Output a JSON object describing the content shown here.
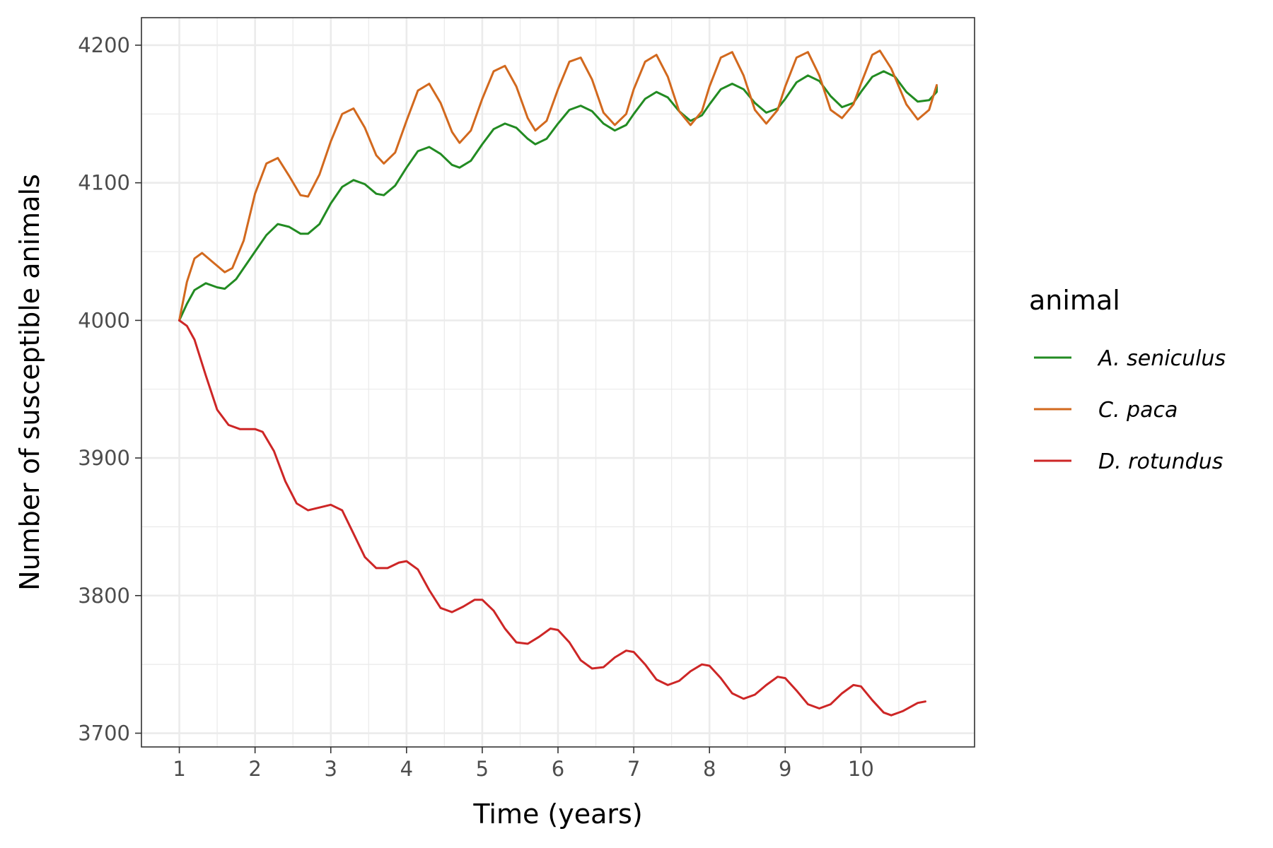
{
  "chart_data": {
    "type": "line",
    "title": "",
    "xlabel": "Time (years)",
    "ylabel": "Number of susceptible animals",
    "xlim": [
      0.5,
      11.5
    ],
    "ylim": [
      3690,
      4220
    ],
    "x_ticks": [
      1,
      2,
      3,
      4,
      5,
      6,
      7,
      8,
      9,
      10
    ],
    "x_tick_labels": [
      "1",
      "2",
      "3",
      "4",
      "5",
      "6",
      "7",
      "8",
      "9",
      "10"
    ],
    "y_ticks": [
      3700,
      3800,
      3900,
      4000,
      4100,
      4200
    ],
    "y_tick_labels": [
      "3700",
      "3800",
      "3900",
      "4000",
      "4100",
      "4200"
    ],
    "grid": true,
    "legend": {
      "title": "animal",
      "position": "right",
      "entries": [
        "A. seniculus",
        "C. paca",
        "D. rotundus"
      ]
    },
    "series": [
      {
        "name": "A. seniculus",
        "color": "#228B22",
        "points": [
          [
            1.0,
            4000
          ],
          [
            1.1,
            4012
          ],
          [
            1.2,
            4022
          ],
          [
            1.35,
            4027
          ],
          [
            1.5,
            4024
          ],
          [
            1.6,
            4023
          ],
          [
            1.75,
            4030
          ],
          [
            1.9,
            4042
          ],
          [
            2.0,
            4050
          ],
          [
            2.15,
            4062
          ],
          [
            2.3,
            4070
          ],
          [
            2.45,
            4068
          ],
          [
            2.6,
            4063
          ],
          [
            2.7,
            4063
          ],
          [
            2.85,
            4070
          ],
          [
            3.0,
            4085
          ],
          [
            3.15,
            4097
          ],
          [
            3.3,
            4102
          ],
          [
            3.45,
            4099
          ],
          [
            3.6,
            4092
          ],
          [
            3.7,
            4091
          ],
          [
            3.85,
            4098
          ],
          [
            4.0,
            4111
          ],
          [
            4.15,
            4123
          ],
          [
            4.3,
            4126
          ],
          [
            4.45,
            4121
          ],
          [
            4.6,
            4113
          ],
          [
            4.7,
            4111
          ],
          [
            4.85,
            4116
          ],
          [
            5.0,
            4128
          ],
          [
            5.15,
            4139
          ],
          [
            5.3,
            4143
          ],
          [
            5.45,
            4140
          ],
          [
            5.6,
            4132
          ],
          [
            5.7,
            4128
          ],
          [
            5.85,
            4132
          ],
          [
            6.0,
            4143
          ],
          [
            6.15,
            4153
          ],
          [
            6.3,
            4156
          ],
          [
            6.45,
            4152
          ],
          [
            6.6,
            4143
          ],
          [
            6.75,
            4138
          ],
          [
            6.9,
            4142
          ],
          [
            7.0,
            4150
          ],
          [
            7.15,
            4161
          ],
          [
            7.3,
            4166
          ],
          [
            7.45,
            4162
          ],
          [
            7.6,
            4152
          ],
          [
            7.75,
            4145
          ],
          [
            7.9,
            4149
          ],
          [
            8.0,
            4157
          ],
          [
            8.15,
            4168
          ],
          [
            8.3,
            4172
          ],
          [
            8.45,
            4168
          ],
          [
            8.6,
            4158
          ],
          [
            8.75,
            4151
          ],
          [
            8.9,
            4154
          ],
          [
            9.0,
            4161
          ],
          [
            9.15,
            4173
          ],
          [
            9.3,
            4178
          ],
          [
            9.45,
            4174
          ],
          [
            9.6,
            4163
          ],
          [
            9.75,
            4155
          ],
          [
            9.9,
            4158
          ],
          [
            10.0,
            4166
          ],
          [
            10.15,
            4177
          ],
          [
            10.3,
            4181
          ],
          [
            10.45,
            4177
          ],
          [
            10.6,
            4166
          ],
          [
            10.75,
            4159
          ],
          [
            10.9,
            4160
          ],
          [
            11.0,
            4166
          ],
          [
            11.0,
            4170
          ]
        ]
      },
      {
        "name": "C. paca",
        "color": "#D2691E",
        "points": [
          [
            1.0,
            4000
          ],
          [
            1.1,
            4028
          ],
          [
            1.2,
            4045
          ],
          [
            1.3,
            4049
          ],
          [
            1.45,
            4042
          ],
          [
            1.6,
            4035
          ],
          [
            1.7,
            4038
          ],
          [
            1.85,
            4058
          ],
          [
            2.0,
            4092
          ],
          [
            2.15,
            4114
          ],
          [
            2.3,
            4118
          ],
          [
            2.45,
            4105
          ],
          [
            2.6,
            4091
          ],
          [
            2.7,
            4090
          ],
          [
            2.85,
            4106
          ],
          [
            3.0,
            4130
          ],
          [
            3.15,
            4150
          ],
          [
            3.3,
            4154
          ],
          [
            3.45,
            4140
          ],
          [
            3.6,
            4120
          ],
          [
            3.7,
            4114
          ],
          [
            3.85,
            4122
          ],
          [
            4.0,
            4145
          ],
          [
            4.15,
            4167
          ],
          [
            4.3,
            4172
          ],
          [
            4.45,
            4158
          ],
          [
            4.6,
            4137
          ],
          [
            4.7,
            4129
          ],
          [
            4.85,
            4138
          ],
          [
            5.0,
            4161
          ],
          [
            5.15,
            4181
          ],
          [
            5.3,
            4185
          ],
          [
            5.45,
            4170
          ],
          [
            5.6,
            4147
          ],
          [
            5.7,
            4138
          ],
          [
            5.85,
            4145
          ],
          [
            6.0,
            4168
          ],
          [
            6.15,
            4188
          ],
          [
            6.3,
            4191
          ],
          [
            6.45,
            4175
          ],
          [
            6.6,
            4151
          ],
          [
            6.75,
            4142
          ],
          [
            6.9,
            4150
          ],
          [
            7.0,
            4168
          ],
          [
            7.15,
            4188
          ],
          [
            7.3,
            4193
          ],
          [
            7.45,
            4177
          ],
          [
            7.6,
            4152
          ],
          [
            7.75,
            4142
          ],
          [
            7.9,
            4152
          ],
          [
            8.0,
            4170
          ],
          [
            8.15,
            4191
          ],
          [
            8.3,
            4195
          ],
          [
            8.45,
            4178
          ],
          [
            8.6,
            4153
          ],
          [
            8.75,
            4143
          ],
          [
            8.9,
            4153
          ],
          [
            9.0,
            4170
          ],
          [
            9.15,
            4191
          ],
          [
            9.3,
            4195
          ],
          [
            9.45,
            4178
          ],
          [
            9.6,
            4153
          ],
          [
            9.75,
            4147
          ],
          [
            9.9,
            4157
          ],
          [
            10.0,
            4172
          ],
          [
            10.15,
            4193
          ],
          [
            10.25,
            4196
          ],
          [
            10.4,
            4183
          ],
          [
            10.6,
            4157
          ],
          [
            10.75,
            4146
          ],
          [
            10.9,
            4153
          ],
          [
            11.0,
            4171
          ]
        ]
      },
      {
        "name": "D. rotundus",
        "color": "#CD2626",
        "points": [
          [
            1.0,
            4000
          ],
          [
            1.1,
            3996
          ],
          [
            1.2,
            3986
          ],
          [
            1.35,
            3960
          ],
          [
            1.5,
            3935
          ],
          [
            1.65,
            3924
          ],
          [
            1.8,
            3921
          ],
          [
            2.0,
            3921
          ],
          [
            2.1,
            3919
          ],
          [
            2.25,
            3905
          ],
          [
            2.4,
            3883
          ],
          [
            2.55,
            3867
          ],
          [
            2.7,
            3862
          ],
          [
            2.85,
            3864
          ],
          [
            3.0,
            3866
          ],
          [
            3.15,
            3862
          ],
          [
            3.3,
            3845
          ],
          [
            3.45,
            3828
          ],
          [
            3.6,
            3820
          ],
          [
            3.75,
            3820
          ],
          [
            3.9,
            3824
          ],
          [
            4.0,
            3825
          ],
          [
            4.15,
            3819
          ],
          [
            4.3,
            3804
          ],
          [
            4.45,
            3791
          ],
          [
            4.6,
            3788
          ],
          [
            4.75,
            3792
          ],
          [
            4.9,
            3797
          ],
          [
            5.0,
            3797
          ],
          [
            5.15,
            3789
          ],
          [
            5.3,
            3776
          ],
          [
            5.45,
            3766
          ],
          [
            5.6,
            3765
          ],
          [
            5.75,
            3770
          ],
          [
            5.9,
            3776
          ],
          [
            6.0,
            3775
          ],
          [
            6.15,
            3766
          ],
          [
            6.3,
            3753
          ],
          [
            6.45,
            3747
          ],
          [
            6.6,
            3748
          ],
          [
            6.75,
            3755
          ],
          [
            6.9,
            3760
          ],
          [
            7.0,
            3759
          ],
          [
            7.15,
            3750
          ],
          [
            7.3,
            3739
          ],
          [
            7.45,
            3735
          ],
          [
            7.6,
            3738
          ],
          [
            7.75,
            3745
          ],
          [
            7.9,
            3750
          ],
          [
            8.0,
            3749
          ],
          [
            8.15,
            3740
          ],
          [
            8.3,
            3729
          ],
          [
            8.45,
            3725
          ],
          [
            8.6,
            3728
          ],
          [
            8.75,
            3735
          ],
          [
            8.9,
            3741
          ],
          [
            9.0,
            3740
          ],
          [
            9.15,
            3731
          ],
          [
            9.3,
            3721
          ],
          [
            9.45,
            3718
          ],
          [
            9.6,
            3721
          ],
          [
            9.75,
            3729
          ],
          [
            9.9,
            3735
          ],
          [
            10.0,
            3734
          ],
          [
            10.15,
            3724
          ],
          [
            10.3,
            3715
          ],
          [
            10.4,
            3713
          ],
          [
            10.55,
            3716
          ],
          [
            10.75,
            3722
          ],
          [
            10.85,
            3723
          ]
        ]
      }
    ]
  }
}
